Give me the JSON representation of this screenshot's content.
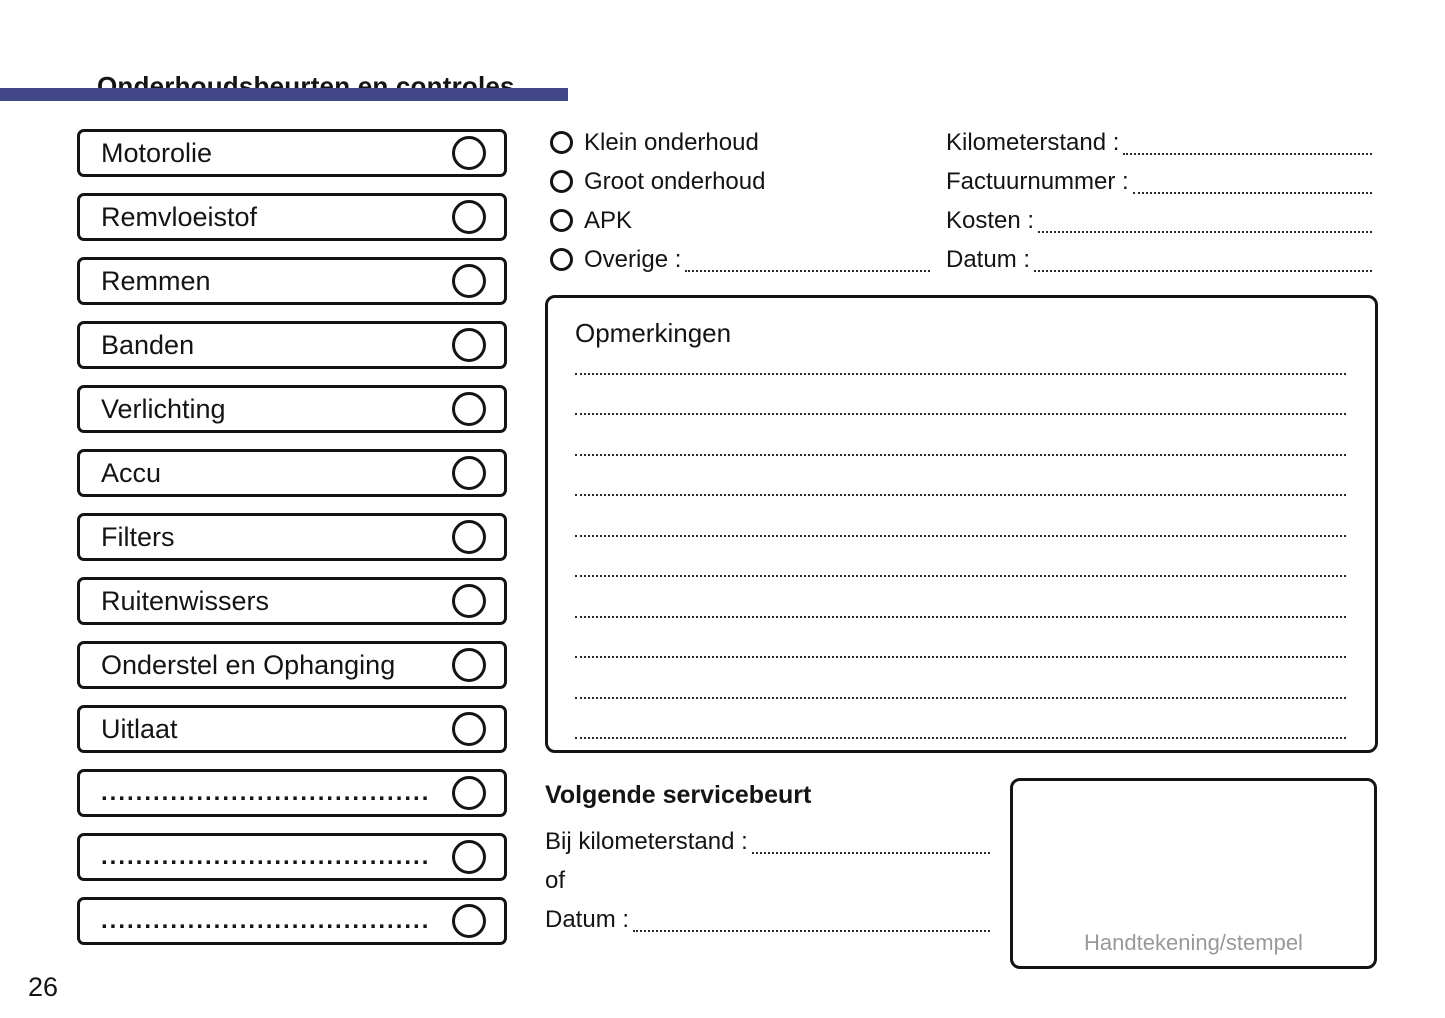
{
  "page": {
    "title": "Onderhoudsbeurten en controles",
    "page_number": "26"
  },
  "colors": {
    "accent_bar": "#414789",
    "signature_label": "#999999"
  },
  "checklist": {
    "items": [
      {
        "label": "Motorolie"
      },
      {
        "label": "Remvloeistof"
      },
      {
        "label": "Remmen"
      },
      {
        "label": "Banden"
      },
      {
        "label": "Verlichting"
      },
      {
        "label": "Accu"
      },
      {
        "label": "Filters"
      },
      {
        "label": "Ruitenwissers"
      },
      {
        "label": "Onderstel en Ophanging"
      },
      {
        "label": "Uitlaat"
      },
      {
        "label": "......................................"
      },
      {
        "label": "......................................"
      },
      {
        "label": "......................................"
      }
    ]
  },
  "service_type": {
    "options": [
      {
        "label": "Klein onderhoud",
        "has_line": false
      },
      {
        "label": "Groot onderhoud",
        "has_line": false
      },
      {
        "label": "APK",
        "has_line": false
      },
      {
        "label": "Overige :",
        "has_line": true
      }
    ]
  },
  "invoice_fields": [
    {
      "label": "Kilometerstand :"
    },
    {
      "label": "Factuurnummer :"
    },
    {
      "label": "Kosten :"
    },
    {
      "label": "Datum :"
    }
  ],
  "remarks": {
    "title": "Opmerkingen",
    "line_count": 10
  },
  "next_service": {
    "title": "Volgende servicebeurt",
    "fields": [
      {
        "label": "Bij kilometerstand :",
        "has_line": true
      },
      {
        "label": "of",
        "has_line": false
      },
      {
        "label": "Datum :",
        "has_line": true
      }
    ]
  },
  "signature": {
    "label": "Handtekening/stempel"
  }
}
